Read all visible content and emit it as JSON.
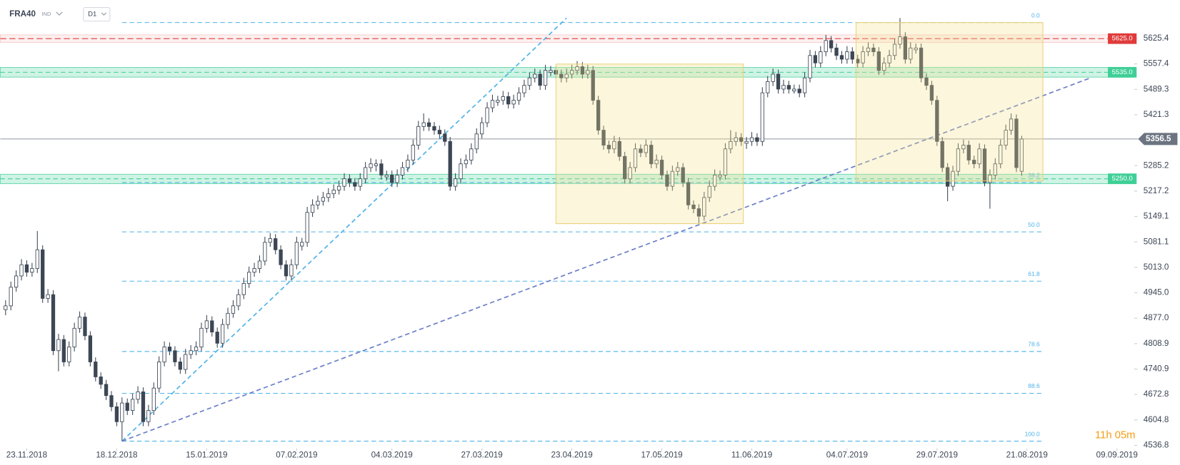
{
  "header": {
    "symbol": "FRA40",
    "market": "IND",
    "timeframe": "D1"
  },
  "chart_data": {
    "type": "candlestick",
    "ohlc": [
      [
        4900,
        4925,
        4885,
        4910
      ],
      [
        4910,
        4975,
        4898,
        4960
      ],
      [
        4960,
        5005,
        4948,
        4990
      ],
      [
        4990,
        5035,
        4978,
        5020
      ],
      [
        5020,
        5032,
        4988,
        5000
      ],
      [
        5000,
        5025,
        4988,
        5010
      ],
      [
        5010,
        5110,
        4998,
        5060
      ],
      [
        5060,
        5072,
        4918,
        4930
      ],
      [
        4930,
        4955,
        4918,
        4940
      ],
      [
        4940,
        4952,
        4778,
        4790
      ],
      [
        4790,
        4835,
        4735,
        4820
      ],
      [
        4820,
        4832,
        4748,
        4760
      ],
      [
        4760,
        4815,
        4748,
        4800
      ],
      [
        4800,
        4865,
        4788,
        4850
      ],
      [
        4850,
        4895,
        4838,
        4880
      ],
      [
        4880,
        4892,
        4818,
        4830
      ],
      [
        4830,
        4842,
        4748,
        4760
      ],
      [
        4760,
        4772,
        4708,
        4720
      ],
      [
        4720,
        4732,
        4688,
        4700
      ],
      [
        4700,
        4712,
        4658,
        4670
      ],
      [
        4670,
        4682,
        4628,
        4640
      ],
      [
        4640,
        4652,
        4588,
        4600
      ],
      [
        4600,
        4665,
        4548,
        4650
      ],
      [
        4650,
        4662,
        4618,
        4630
      ],
      [
        4630,
        4675,
        4618,
        4660
      ],
      [
        4660,
        4695,
        4648,
        4680
      ],
      [
        4680,
        4692,
        4588,
        4600
      ],
      [
        4600,
        4645,
        4588,
        4630
      ],
      [
        4630,
        4705,
        4618,
        4690
      ],
      [
        4690,
        4775,
        4678,
        4760
      ],
      [
        4760,
        4815,
        4748,
        4800
      ],
      [
        4800,
        4812,
        4778,
        4790
      ],
      [
        4790,
        4802,
        4748,
        4760
      ],
      [
        4760,
        4772,
        4728,
        4740
      ],
      [
        4740,
        4795,
        4728,
        4780
      ],
      [
        4780,
        4805,
        4768,
        4790
      ],
      [
        4790,
        4815,
        4778,
        4800
      ],
      [
        4800,
        4865,
        4788,
        4850
      ],
      [
        4850,
        4885,
        4838,
        4870
      ],
      [
        4870,
        4882,
        4828,
        4840
      ],
      [
        4840,
        4852,
        4798,
        4810
      ],
      [
        4810,
        4875,
        4798,
        4860
      ],
      [
        4860,
        4905,
        4848,
        4890
      ],
      [
        4890,
        4925,
        4878,
        4910
      ],
      [
        4910,
        4955,
        4898,
        4940
      ],
      [
        4940,
        4985,
        4928,
        4970
      ],
      [
        4970,
        5015,
        4958,
        5000
      ],
      [
        5000,
        5025,
        4988,
        5010
      ],
      [
        5010,
        5045,
        4998,
        5030
      ],
      [
        5030,
        5095,
        5018,
        5080
      ],
      [
        5080,
        5105,
        5068,
        5090
      ],
      [
        5090,
        5102,
        5048,
        5060
      ],
      [
        5060,
        5072,
        5008,
        5020
      ],
      [
        5020,
        5032,
        4978,
        4990
      ],
      [
        4990,
        5035,
        4978,
        5020
      ],
      [
        5020,
        5095,
        5008,
        5080
      ],
      [
        5070,
        5092,
        5058,
        5080
      ],
      [
        5080,
        5175,
        5068,
        5160
      ],
      [
        5160,
        5195,
        5148,
        5180
      ],
      [
        5180,
        5205,
        5168,
        5190
      ],
      [
        5190,
        5215,
        5178,
        5200
      ],
      [
        5200,
        5225,
        5188,
        5210
      ],
      [
        5210,
        5235,
        5198,
        5220
      ],
      [
        5220,
        5245,
        5208,
        5230
      ],
      [
        5230,
        5265,
        5218,
        5250
      ],
      [
        5250,
        5262,
        5228,
        5240
      ],
      [
        5240,
        5252,
        5218,
        5230
      ],
      [
        5230,
        5265,
        5218,
        5250
      ],
      [
        5250,
        5295,
        5238,
        5280
      ],
      [
        5280,
        5305,
        5268,
        5290
      ],
      [
        5285,
        5302,
        5270,
        5290
      ],
      [
        5290,
        5302,
        5248,
        5260
      ],
      [
        5255,
        5272,
        5245,
        5260
      ],
      [
        5260,
        5272,
        5228,
        5240
      ],
      [
        5240,
        5275,
        5228,
        5260
      ],
      [
        5260,
        5295,
        5248,
        5280
      ],
      [
        5280,
        5315,
        5268,
        5300
      ],
      [
        5300,
        5355,
        5288,
        5340
      ],
      [
        5340,
        5405,
        5328,
        5390
      ],
      [
        5390,
        5425,
        5378,
        5400
      ],
      [
        5400,
        5412,
        5378,
        5390
      ],
      [
        5390,
        5402,
        5368,
        5380
      ],
      [
        5380,
        5392,
        5358,
        5370
      ],
      [
        5370,
        5382,
        5338,
        5350
      ],
      [
        5350,
        5362,
        5218,
        5230
      ],
      [
        5230,
        5265,
        5218,
        5250
      ],
      [
        5250,
        5305,
        5238,
        5290
      ],
      [
        5290,
        5315,
        5278,
        5300
      ],
      [
        5300,
        5345,
        5288,
        5330
      ],
      [
        5330,
        5385,
        5318,
        5370
      ],
      [
        5370,
        5415,
        5358,
        5400
      ],
      [
        5400,
        5455,
        5388,
        5440
      ],
      [
        5440,
        5475,
        5428,
        5460
      ],
      [
        5455,
        5472,
        5445,
        5460
      ],
      [
        5460,
        5485,
        5448,
        5470
      ],
      [
        5470,
        5482,
        5438,
        5450
      ],
      [
        5450,
        5475,
        5438,
        5460
      ],
      [
        5460,
        5495,
        5448,
        5480
      ],
      [
        5480,
        5515,
        5468,
        5500
      ],
      [
        5500,
        5535,
        5488,
        5520
      ],
      [
        5520,
        5545,
        5508,
        5530
      ],
      [
        5530,
        5542,
        5488,
        5500
      ],
      [
        5500,
        5555,
        5488,
        5540
      ],
      [
        5535,
        5552,
        5525,
        5540
      ],
      [
        5540,
        5552,
        5518,
        5530
      ],
      [
        5530,
        5542,
        5508,
        5520
      ],
      [
        5520,
        5545,
        5508,
        5530
      ],
      [
        5530,
        5555,
        5518,
        5540
      ],
      [
        5540,
        5565,
        5528,
        5550
      ],
      [
        5550,
        5562,
        5518,
        5530
      ],
      [
        5530,
        5555,
        5518,
        5540
      ],
      [
        5540,
        5552,
        5448,
        5460
      ],
      [
        5460,
        5472,
        5368,
        5380
      ],
      [
        5380,
        5392,
        5328,
        5340
      ],
      [
        5340,
        5352,
        5318,
        5330
      ],
      [
        5330,
        5365,
        5318,
        5350
      ],
      [
        5350,
        5362,
        5298,
        5310
      ],
      [
        5310,
        5322,
        5238,
        5250
      ],
      [
        5250,
        5295,
        5238,
        5280
      ],
      [
        5280,
        5345,
        5268,
        5330
      ],
      [
        5330,
        5342,
        5308,
        5320
      ],
      [
        5320,
        5355,
        5308,
        5340
      ],
      [
        5340,
        5352,
        5278,
        5290
      ],
      [
        5290,
        5315,
        5278,
        5300
      ],
      [
        5300,
        5312,
        5248,
        5260
      ],
      [
        5260,
        5272,
        5218,
        5230
      ],
      [
        5230,
        5285,
        5218,
        5270
      ],
      [
        5270,
        5295,
        5258,
        5280
      ],
      [
        5280,
        5292,
        5228,
        5240
      ],
      [
        5240,
        5252,
        5168,
        5180
      ],
      [
        5180,
        5192,
        5158,
        5170
      ],
      [
        5170,
        5182,
        5130,
        5150
      ],
      [
        5150,
        5215,
        5138,
        5200
      ],
      [
        5200,
        5245,
        5188,
        5230
      ],
      [
        5230,
        5275,
        5218,
        5260
      ],
      [
        5255,
        5272,
        5245,
        5260
      ],
      [
        5260,
        5345,
        5248,
        5330
      ],
      [
        5330,
        5380,
        5318,
        5350
      ],
      [
        5350,
        5375,
        5338,
        5360
      ],
      [
        5360,
        5372,
        5338,
        5350
      ],
      [
        5345,
        5362,
        5330,
        5350
      ],
      [
        5350,
        5375,
        5338,
        5360
      ],
      [
        5360,
        5372,
        5338,
        5350
      ],
      [
        5350,
        5495,
        5338,
        5480
      ],
      [
        5480,
        5525,
        5468,
        5510
      ],
      [
        5510,
        5545,
        5498,
        5530
      ],
      [
        5530,
        5542,
        5478,
        5490
      ],
      [
        5490,
        5515,
        5478,
        5500
      ],
      [
        5500,
        5512,
        5478,
        5490
      ],
      [
        5485,
        5502,
        5478,
        5490
      ],
      [
        5490,
        5502,
        5468,
        5480
      ],
      [
        5480,
        5535,
        5468,
        5520
      ],
      [
        5520,
        5595,
        5508,
        5580
      ],
      [
        5580,
        5592,
        5548,
        5560
      ],
      [
        5560,
        5605,
        5548,
        5590
      ],
      [
        5590,
        5635,
        5578,
        5620
      ],
      [
        5620,
        5632,
        5588,
        5600
      ],
      [
        5600,
        5612,
        5568,
        5580
      ],
      [
        5580,
        5592,
        5558,
        5570
      ],
      [
        5570,
        5605,
        5558,
        5590
      ],
      [
        5590,
        5602,
        5558,
        5570
      ],
      [
        5570,
        5582,
        5548,
        5560
      ],
      [
        5560,
        5605,
        5548,
        5590
      ],
      [
        5590,
        5615,
        5578,
        5600
      ],
      [
        5600,
        5612,
        5578,
        5590
      ],
      [
        5590,
        5602,
        5528,
        5540
      ],
      [
        5540,
        5575,
        5528,
        5560
      ],
      [
        5560,
        5595,
        5548,
        5580
      ],
      [
        5580,
        5625,
        5568,
        5610
      ],
      [
        5610,
        5680,
        5598,
        5630
      ],
      [
        5630,
        5642,
        5558,
        5570
      ],
      [
        5570,
        5615,
        5558,
        5600
      ],
      [
        5595,
        5612,
        5585,
        5600
      ],
      [
        5600,
        5612,
        5508,
        5520
      ],
      [
        5520,
        5532,
        5488,
        5500
      ],
      [
        5500,
        5512,
        5448,
        5460
      ],
      [
        5460,
        5472,
        5338,
        5350
      ],
      [
        5350,
        5362,
        5268,
        5280
      ],
      [
        5280,
        5292,
        5190,
        5230
      ],
      [
        5230,
        5285,
        5218,
        5270
      ],
      [
        5270,
        5345,
        5258,
        5330
      ],
      [
        5330,
        5355,
        5318,
        5340
      ],
      [
        5340,
        5352,
        5288,
        5300
      ],
      [
        5300,
        5312,
        5278,
        5290
      ],
      [
        5290,
        5345,
        5278,
        5330
      ],
      [
        5330,
        5342,
        5230,
        5240
      ],
      [
        5240,
        5275,
        5170,
        5260
      ],
      [
        5260,
        5305,
        5248,
        5290
      ],
      [
        5290,
        5355,
        5278,
        5340
      ],
      [
        5340,
        5395,
        5328,
        5380
      ],
      [
        5380,
        5425,
        5368,
        5410
      ],
      [
        5410,
        5422,
        5268,
        5280
      ],
      [
        5270,
        5365,
        5258,
        5356.5
      ]
    ],
    "bull_color": "#ffffff",
    "bear_color": "#3c4654",
    "wick_color": "#3c4654",
    "xlim": [
      -1,
      213
    ],
    "xticks": [
      {
        "value": 4,
        "label": "23.11.2018"
      },
      {
        "value": 21,
        "label": "18.12.2018"
      },
      {
        "value": 38,
        "label": "15.01.2019"
      },
      {
        "value": 55,
        "label": "07.02.2019"
      },
      {
        "value": 73,
        "label": "04.03.2019"
      },
      {
        "value": 90,
        "label": "27.03.2019"
      },
      {
        "value": 107,
        "label": "23.04.2019"
      },
      {
        "value": 124,
        "label": "17.05.2019"
      },
      {
        "value": 141,
        "label": "11.06.2019"
      },
      {
        "value": 159,
        "label": "04.07.2019"
      },
      {
        "value": 176,
        "label": "29.07.2019"
      },
      {
        "value": 193,
        "label": "21.08.2019"
      },
      {
        "value": 210,
        "label": "09.09.2019"
      }
    ],
    "ylim": [
      4516.5,
      5728.4
    ],
    "yticks": [
      5625.4,
      5557.4,
      5489.3,
      5421.3,
      5285.2,
      5217.2,
      5149.1,
      5081.1,
      {
        "value": 5013,
        "label": "5013.0"
      },
      {
        "value": 4945,
        "label": "4945.0"
      },
      {
        "value": 4877,
        "label": "4877.0"
      },
      4808.9,
      4740.9,
      4672.8,
      4604.8,
      4536.8
    ],
    "levels": [
      {
        "value": 5625,
        "label": "5625.0",
        "color": "#e03b3b"
      }
    ],
    "zones": [
      {
        "value": 5535,
        "label": "5535.0",
        "low": 5522,
        "high": 5548,
        "color": "#3fcf97"
      },
      {
        "value": 5250,
        "label": "5250.0",
        "low": 5237,
        "high": 5262,
        "color": "#3fcf97"
      }
    ],
    "fibonacci": {
      "start": 22,
      "end": 196,
      "color": "#4fb3e8",
      "levels": [
        {
          "value": 5668,
          "label": "0.0"
        },
        {
          "value": 5240,
          "label": "38.2"
        },
        {
          "value": 5108,
          "label": "50.0"
        },
        {
          "value": 4976,
          "label": "61.8"
        },
        {
          "value": 4788,
          "label": "78.6"
        },
        {
          "value": 4676,
          "label": "88.6"
        },
        {
          "value": 4548,
          "label": "100.0"
        }
      ]
    },
    "trendlines": [
      {
        "points": [
          [
            22,
            4548
          ],
          [
            106,
            5680
          ]
        ],
        "color": "#4fb3e8"
      },
      {
        "points": [
          [
            22,
            4548
          ],
          [
            205,
            5520
          ]
        ],
        "color": "#6a7fc8"
      }
    ],
    "boxes": [
      {
        "x": [
          104,
          139.4
        ],
        "y": [
          5130,
          5557
        ]
      },
      {
        "x": [
          160.7,
          196
        ],
        "y": [
          5244,
          5668
        ]
      }
    ],
    "countdown": "11h 05m"
  }
}
